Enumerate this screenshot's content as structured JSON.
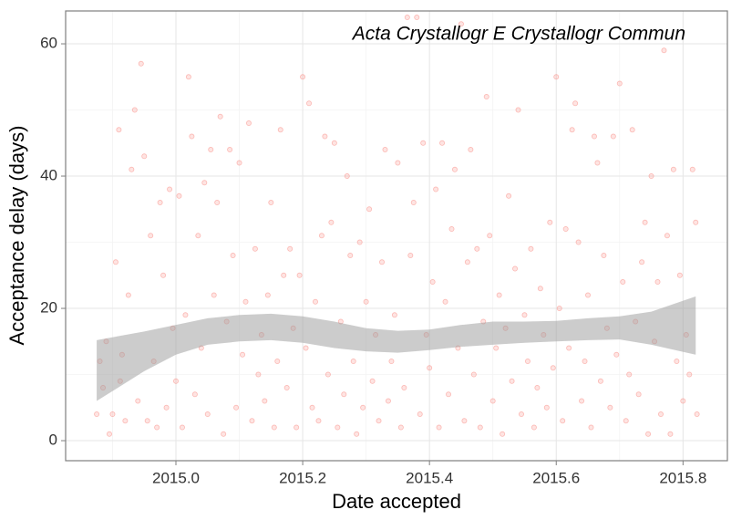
{
  "chart_data": {
    "type": "scatter",
    "annotation": "Acta Crystallogr E Crystallogr Commun",
    "x_label": "Date accepted",
    "y_label": "Acceptance delay (days)",
    "xlim": [
      2014.826,
      2015.87
    ],
    "ylim": [
      -3.03,
      64.97
    ],
    "xticks": [
      {
        "value": 2015.0,
        "label": "2015.0"
      },
      {
        "value": 2015.2,
        "label": "2015.2"
      },
      {
        "value": 2015.4,
        "label": "2015.4"
      },
      {
        "value": 2015.6,
        "label": "2015.6"
      },
      {
        "value": 2015.8,
        "label": "2015.8"
      }
    ],
    "yticks": [
      0,
      20,
      40,
      60
    ],
    "minor_xticks": [
      2014.9,
      2015.1,
      2015.3,
      2015.5,
      2015.7
    ],
    "minor_yticks": [
      10,
      30,
      50
    ],
    "grid": true,
    "points": {
      "color": "#f8766d",
      "x": [
        2014.875,
        2014.88,
        2014.885,
        2014.89,
        2014.895,
        2014.9,
        2014.905,
        2014.91,
        2014.912,
        2014.915,
        2014.92,
        2014.925,
        2014.93,
        2014.935,
        2014.94,
        2014.945,
        2014.95,
        2014.955,
        2014.96,
        2014.965,
        2014.97,
        2014.975,
        2014.98,
        2014.985,
        2014.99,
        2014.995,
        2015.0,
        2015.005,
        2015.01,
        2015.015,
        2015.02,
        2015.025,
        2015.03,
        2015.035,
        2015.04,
        2015.045,
        2015.05,
        2015.055,
        2015.06,
        2015.065,
        2015.07,
        2015.075,
        2015.08,
        2015.085,
        2015.09,
        2015.095,
        2015.1,
        2015.105,
        2015.11,
        2015.115,
        2015.12,
        2015.125,
        2015.13,
        2015.135,
        2015.14,
        2015.145,
        2015.15,
        2015.155,
        2015.16,
        2015.165,
        2015.17,
        2015.175,
        2015.18,
        2015.185,
        2015.19,
        2015.195,
        2015.2,
        2015.205,
        2015.21,
        2015.215,
        2015.22,
        2015.225,
        2015.23,
        2015.235,
        2015.24,
        2015.245,
        2015.25,
        2015.255,
        2015.26,
        2015.265,
        2015.27,
        2015.275,
        2015.28,
        2015.285,
        2015.29,
        2015.295,
        2015.3,
        2015.305,
        2015.31,
        2015.315,
        2015.32,
        2015.325,
        2015.33,
        2015.335,
        2015.34,
        2015.345,
        2015.35,
        2015.355,
        2015.36,
        2015.365,
        2015.37,
        2015.375,
        2015.38,
        2015.385,
        2015.39,
        2015.395,
        2015.4,
        2015.405,
        2015.41,
        2015.415,
        2015.42,
        2015.425,
        2015.43,
        2015.435,
        2015.44,
        2015.445,
        2015.45,
        2015.455,
        2015.46,
        2015.465,
        2015.47,
        2015.475,
        2015.48,
        2015.485,
        2015.49,
        2015.495,
        2015.5,
        2015.505,
        2015.51,
        2015.515,
        2015.52,
        2015.525,
        2015.53,
        2015.535,
        2015.54,
        2015.545,
        2015.55,
        2015.555,
        2015.56,
        2015.565,
        2015.57,
        2015.575,
        2015.58,
        2015.585,
        2015.59,
        2015.595,
        2015.6,
        2015.605,
        2015.61,
        2015.615,
        2015.62,
        2015.625,
        2015.63,
        2015.635,
        2015.64,
        2015.645,
        2015.65,
        2015.655,
        2015.66,
        2015.665,
        2015.67,
        2015.675,
        2015.68,
        2015.685,
        2015.69,
        2015.695,
        2015.7,
        2015.705,
        2015.71,
        2015.715,
        2015.72,
        2015.725,
        2015.73,
        2015.735,
        2015.74,
        2015.745,
        2015.75,
        2015.755,
        2015.76,
        2015.765,
        2015.77,
        2015.775,
        2015.78,
        2015.785,
        2015.79,
        2015.795,
        2015.8,
        2015.805,
        2015.81,
        2015.815,
        2015.82,
        2015.822
      ],
      "y": [
        4,
        12,
        8,
        15,
        1,
        4,
        27,
        47,
        9,
        13,
        3,
        22,
        41,
        50,
        6,
        57,
        43,
        3,
        31,
        12,
        2,
        36,
        25,
        5,
        38,
        17,
        9,
        37,
        2,
        19,
        55,
        46,
        7,
        31,
        14,
        39,
        4,
        44,
        22,
        36,
        49,
        1,
        18,
        44,
        28,
        5,
        42,
        13,
        21,
        48,
        3,
        29,
        10,
        16,
        6,
        22,
        36,
        2,
        12,
        47,
        25,
        8,
        29,
        17,
        2,
        25,
        55,
        14,
        51,
        5,
        21,
        3,
        31,
        46,
        10,
        33,
        45,
        2,
        18,
        7,
        40,
        28,
        12,
        1,
        30,
        5,
        21,
        35,
        9,
        16,
        3,
        27,
        44,
        6,
        12,
        19,
        42,
        2,
        8,
        64,
        28,
        36,
        64,
        4,
        45,
        16,
        11,
        24,
        38,
        2,
        45,
        21,
        7,
        32,
        41,
        14,
        63,
        3,
        27,
        44,
        10,
        29,
        2,
        18,
        52,
        31,
        6,
        14,
        22,
        1,
        17,
        37,
        9,
        26,
        50,
        4,
        19,
        12,
        29,
        2,
        8,
        23,
        16,
        5,
        33,
        11,
        55,
        20,
        3,
        32,
        14,
        47,
        51,
        30,
        6,
        12,
        22,
        2,
        46,
        42,
        9,
        28,
        17,
        5,
        46,
        13,
        54,
        24,
        3,
        10,
        47,
        18,
        7,
        27,
        33,
        1,
        40,
        15,
        24,
        4,
        59,
        31,
        1,
        41,
        12,
        25,
        6,
        16,
        10,
        41,
        33,
        4
      ]
    },
    "smooth_band": {
      "color": "#999999",
      "x": [
        2014.875,
        2014.95,
        2015.0,
        2015.05,
        2015.1,
        2015.15,
        2015.2,
        2015.25,
        2015.3,
        2015.35,
        2015.4,
        2015.45,
        2015.5,
        2015.55,
        2015.6,
        2015.65,
        2015.7,
        2015.75,
        2015.82
      ],
      "lower": [
        6,
        10.5,
        13,
        14.5,
        15,
        15.2,
        14.8,
        14,
        13.5,
        13.3,
        13.7,
        14.2,
        14.5,
        14.8,
        15,
        15.2,
        15.3,
        14.5,
        13
      ],
      "upper": [
        15.2,
        16.5,
        17.5,
        18.5,
        19,
        19.2,
        18.8,
        18,
        17,
        16.6,
        16.8,
        17.5,
        18,
        18,
        18.1,
        18.5,
        18.8,
        19.5,
        21.8
      ]
    }
  }
}
